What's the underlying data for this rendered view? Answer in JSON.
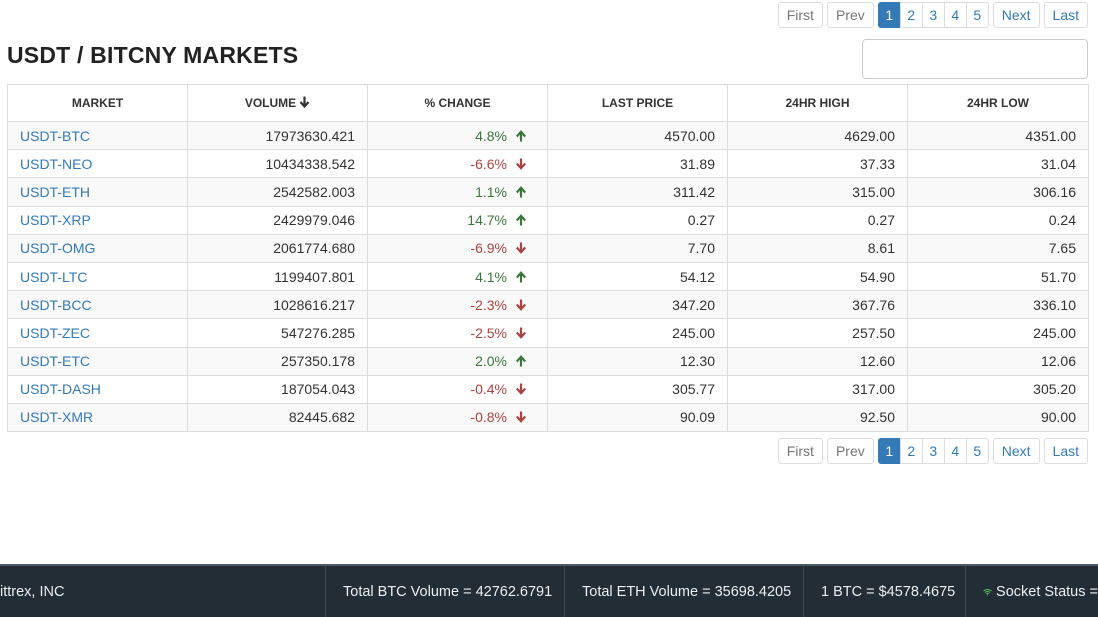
{
  "pagination": {
    "first": "First",
    "prev": "Prev",
    "pages": [
      "1",
      "2",
      "3",
      "4",
      "5"
    ],
    "current_page": "1",
    "next": "Next",
    "last": "Last"
  },
  "page_title": "USDT / BITCNY MARKETS",
  "search": {
    "value": "",
    "placeholder": ""
  },
  "table": {
    "headers": {
      "market": "MARKET",
      "volume": "VOLUME",
      "change": "% CHANGE",
      "last_price": "LAST PRICE",
      "high": "24HR HIGH",
      "low": "24HR LOW"
    },
    "sort_icon": "arrow-down-icon",
    "rows": [
      {
        "market": "USDT-BTC",
        "volume": "17973630.421",
        "change": "4.8%",
        "direction": "up",
        "last": "4570.00",
        "high": "4629.00",
        "low": "4351.00"
      },
      {
        "market": "USDT-NEO",
        "volume": "10434338.542",
        "change": "-6.6%",
        "direction": "down",
        "last": "31.89",
        "high": "37.33",
        "low": "31.04"
      },
      {
        "market": "USDT-ETH",
        "volume": "2542582.003",
        "change": "1.1%",
        "direction": "up",
        "last": "311.42",
        "high": "315.00",
        "low": "306.16"
      },
      {
        "market": "USDT-XRP",
        "volume": "2429979.046",
        "change": "14.7%",
        "direction": "up",
        "last": "0.27",
        "high": "0.27",
        "low": "0.24"
      },
      {
        "market": "USDT-OMG",
        "volume": "2061774.680",
        "change": "-6.9%",
        "direction": "down",
        "last": "7.70",
        "high": "8.61",
        "low": "7.65"
      },
      {
        "market": "USDT-LTC",
        "volume": "1199407.801",
        "change": "4.1%",
        "direction": "up",
        "last": "54.12",
        "high": "54.90",
        "low": "51.70"
      },
      {
        "market": "USDT-BCC",
        "volume": "1028616.217",
        "change": "-2.3%",
        "direction": "down",
        "last": "347.20",
        "high": "367.76",
        "low": "336.10"
      },
      {
        "market": "USDT-ZEC",
        "volume": "547276.285",
        "change": "-2.5%",
        "direction": "down",
        "last": "245.00",
        "high": "257.50",
        "low": "245.00"
      },
      {
        "market": "USDT-ETC",
        "volume": "257350.178",
        "change": "2.0%",
        "direction": "up",
        "last": "12.30",
        "high": "12.60",
        "low": "12.06"
      },
      {
        "market": "USDT-DASH",
        "volume": "187054.043",
        "change": "-0.4%",
        "direction": "down",
        "last": "305.77",
        "high": "317.00",
        "low": "305.20"
      },
      {
        "market": "USDT-XMR",
        "volume": "82445.682",
        "change": "-0.8%",
        "direction": "down",
        "last": "90.09",
        "high": "92.50",
        "low": "90.00"
      }
    ]
  },
  "footer": {
    "company": "ittrex, INC",
    "btc_volume": "Total BTC Volume = 42762.6791",
    "eth_volume": "Total ETH Volume = 35698.4205",
    "btc_price": "1 BTC = $4578.4675",
    "socket_status": "Socket Status =",
    "socket_icon": "wifi-icon"
  },
  "colors": {
    "link": "#337ab7",
    "up": "#3c763d",
    "down": "#a94442",
    "footer_bg": "#222d35",
    "socket_ok": "#5cb85c"
  }
}
